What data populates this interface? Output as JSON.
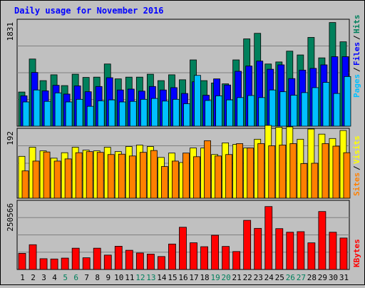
{
  "chart_data": {
    "type": "bar",
    "title": "Daily usage for November 2016",
    "x": [
      "1",
      "2",
      "3",
      "4",
      "5",
      "6",
      "7",
      "8",
      "9",
      "10",
      "11",
      "12",
      "13",
      "14",
      "15",
      "16",
      "17",
      "18",
      "19",
      "20",
      "21",
      "22",
      "23",
      "24",
      "25",
      "26",
      "27",
      "28",
      "29",
      "30",
      "31"
    ],
    "weekend_days": [
      "5",
      "6",
      "12",
      "13",
      "19",
      "20",
      "26",
      "27"
    ],
    "panels": [
      {
        "name": "hits-files-pages",
        "ylabel_ticks": [
          "1831"
        ],
        "ymax": 1831,
        "legend": [
          "Pages",
          "Files",
          "Hits"
        ],
        "series": [
          {
            "name": "Hits",
            "color": "#00805c",
            "values": [
              585,
              1150,
              780,
              880,
              695,
              890,
              835,
              840,
              1065,
              810,
              840,
              840,
              890,
              780,
              880,
              795,
              1135,
              780,
              740,
              725,
              1135,
              1495,
              1590,
              1065,
              1100,
              1285,
              1220,
              1520,
              1170,
              1775,
              1445
            ]
          },
          {
            "name": "Files",
            "color": "#0000ff",
            "values": [
              520,
              920,
              605,
              700,
              550,
              690,
              590,
              680,
              830,
              620,
              635,
              600,
              680,
              620,
              660,
              560,
              760,
              530,
              810,
              705,
              940,
              1030,
              1115,
              975,
              1050,
              815,
              960,
              990,
              1050,
              1190,
              1190
            ]
          },
          {
            "name": "Pages",
            "color": "#00c0ff",
            "values": [
              415,
              620,
              425,
              570,
              415,
              460,
              340,
              435,
              450,
              415,
              425,
              460,
              475,
              430,
              460,
              385,
              870,
              440,
              520,
              450,
              490,
              525,
              490,
              620,
              590,
              530,
              575,
              660,
              750,
              560,
              850
            ]
          }
        ]
      },
      {
        "name": "visits-sites",
        "ylabel_ticks": [
          "192"
        ],
        "ymax": 192,
        "legend": [
          "Sites",
          "Visits"
        ],
        "series": [
          {
            "name": "Visits",
            "color": "#ffff00",
            "values": [
              115,
              140,
              130,
              110,
              125,
              140,
              132,
              130,
              140,
              128,
              142,
              146,
              142,
              112,
              124,
              98,
              138,
              138,
              120,
              152,
              148,
              138,
              162,
              200,
              195,
              196,
              162,
              190,
              176,
              164,
              186
            ]
          },
          {
            "name": "Sites",
            "color": "#ff8000",
            "values": [
              75,
              102,
              127,
              102,
              108,
              125,
              128,
              126,
              120,
              121,
              116,
              126,
              131,
              87,
              102,
              124,
              114,
              158,
              116,
              120,
              150,
              138,
              150,
              144,
              146,
              150,
              95,
              96,
              150,
              143,
              125
            ]
          }
        ]
      },
      {
        "name": "kbytes",
        "ylabel_ticks": [
          "250566"
        ],
        "ymax": 250566,
        "legend": [
          "KBytes"
        ],
        "series": [
          {
            "name": "KBytes",
            "color": "#ff0000",
            "values": [
              58300,
              89700,
              39000,
              38000,
              41200,
              77100,
              42400,
              77100,
              52100,
              84200,
              69500,
              59700,
              55700,
              46900,
              92200,
              153000,
              96800,
              82500,
              124000,
              83500,
              65000,
              178000,
              149000,
              228000,
              148000,
              135000,
              137000,
              96500,
              210000,
              135000,
              114000
            ]
          }
        ]
      }
    ],
    "title_color": "#0000ff",
    "day_color": "#000000",
    "weekend_color": "#00805c"
  }
}
